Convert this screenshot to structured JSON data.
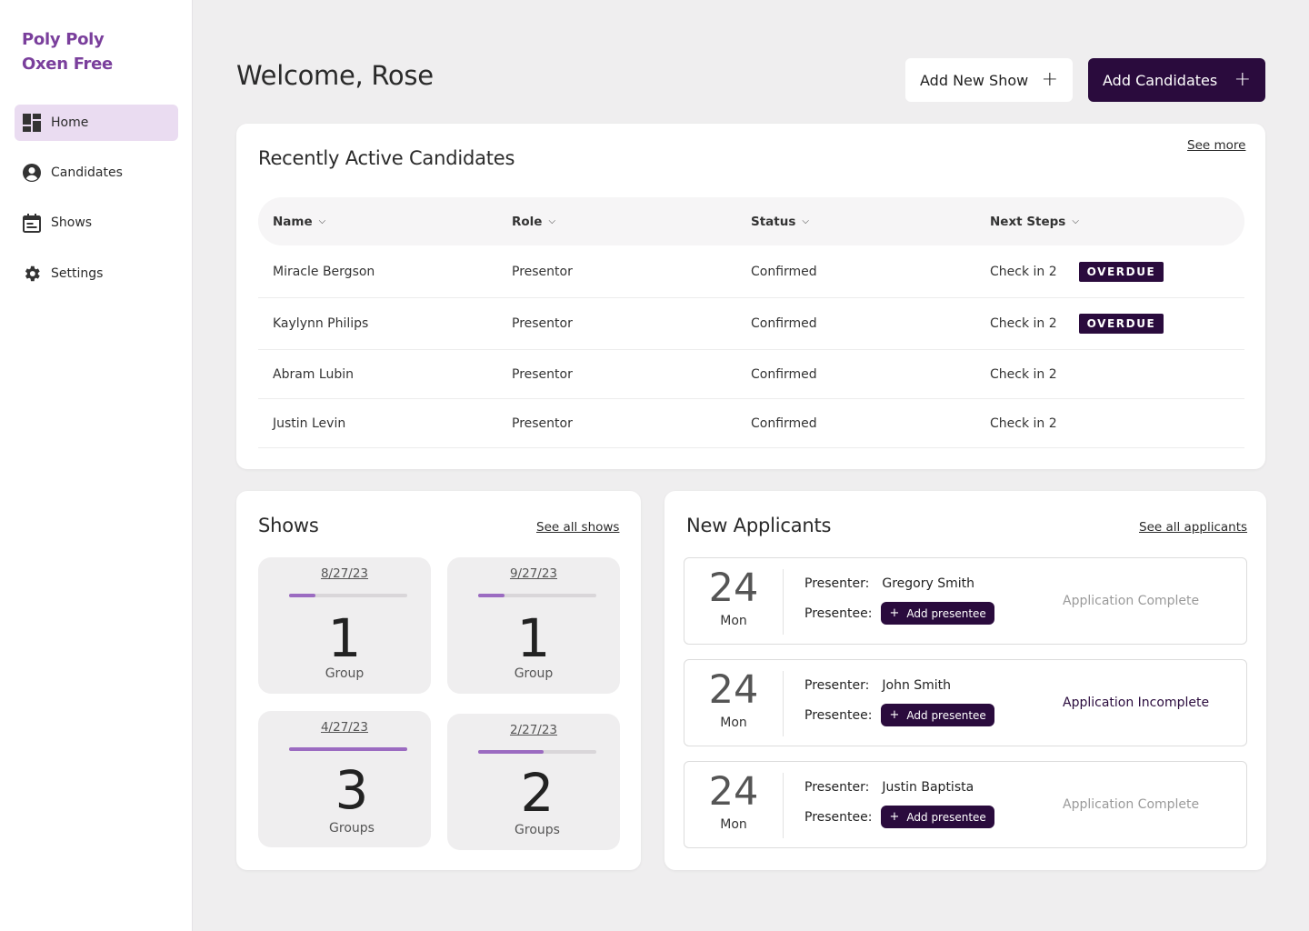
{
  "brand": {
    "line1": "Poly Poly",
    "line2": "Oxen Free",
    "color": "#7a3f9c"
  },
  "sidebar": {
    "items": [
      {
        "label": "Home",
        "icon": "dashboard-icon",
        "active": true
      },
      {
        "label": "Candidates",
        "icon": "account-circle-icon",
        "active": false
      },
      {
        "label": "Shows",
        "icon": "calendar-icon",
        "active": false
      },
      {
        "label": "Settings",
        "icon": "gear-icon",
        "active": false
      }
    ]
  },
  "header": {
    "welcome": "Welcome, Rose",
    "add_show_label": "Add New Show",
    "add_candidates_label": "Add Candidates"
  },
  "candidates": {
    "title": "Recently Active Candidates",
    "see_more": "See more",
    "columns": [
      "Name",
      "Role",
      "Status",
      "Next Steps"
    ],
    "rows": [
      {
        "name": "Miracle Bergson",
        "role": "Presentor",
        "status": "Confirmed",
        "next": "Check in 2",
        "badge": "OVERDUE"
      },
      {
        "name": "Kaylynn Philips",
        "role": "Presentor",
        "status": "Confirmed",
        "next": "Check in 2",
        "badge": "OVERDUE"
      },
      {
        "name": "Abram Lubin",
        "role": "Presentor",
        "status": "Confirmed",
        "next": "Check in 2",
        "badge": ""
      },
      {
        "name": "Justin Levin",
        "role": "Presentor",
        "status": "Confirmed",
        "next": "Check in 2",
        "badge": ""
      }
    ]
  },
  "shows": {
    "title": "Shows",
    "see_all": "See all shows",
    "tiles": [
      {
        "date": "8/27/23",
        "count": "1",
        "label": "Group",
        "progress": 0.22
      },
      {
        "date": "9/27/23",
        "count": "1",
        "label": "Group",
        "progress": 0.22
      },
      {
        "date": "4/27/23",
        "count": "3",
        "label": "Groups",
        "progress": 1.0
      },
      {
        "date": "2/27/23",
        "count": "2",
        "label": "Groups",
        "progress": 0.55
      }
    ]
  },
  "applicants": {
    "title": "New Applicants",
    "see_all": "See all applicants",
    "presenter_label": "Presenter:",
    "presentee_label": "Presentee:",
    "add_presentee": "Add presentee",
    "items": [
      {
        "day": "24",
        "dow": "Mon",
        "presenter": "Gregory Smith",
        "status": "Application Complete",
        "status_color": "#9a9a9a"
      },
      {
        "day": "24",
        "dow": "Mon",
        "presenter": "John Smith",
        "status": "Application Incomplete",
        "status_color": "#2a0b3d"
      },
      {
        "day": "24",
        "dow": "Mon",
        "presenter": "Justin Baptista",
        "status": "Application Complete",
        "status_color": "#9a9a9a"
      }
    ]
  },
  "colors": {
    "accent_dark": "#2a0b3d",
    "accent_light": "#eadcf1",
    "progress": "#9b6bc1"
  }
}
